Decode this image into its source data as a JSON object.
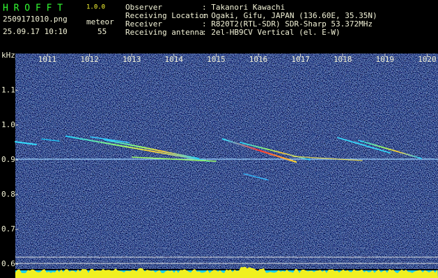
{
  "header": {
    "app": "H R O F F T",
    "version": "1.0.0",
    "file": "2509171010.png",
    "datetime": "25.09.17 10:10",
    "count_label": "meteor",
    "count": "55"
  },
  "info": {
    "rows": [
      {
        "label": "Observer",
        "value": ": Takanori Kawachi"
      },
      {
        "label": "Receiving Location",
        "value": ": Ogaki, Gifu, JAPAN (136.60E, 35.35N)"
      },
      {
        "label": "Receiver",
        "value": ": R820T2(RTL-SDR) SDR-Sharp 53.372MHz"
      },
      {
        "label": "Receiving antenna",
        "value": ": 2el-HB9CV Vertical (el. E-W)"
      }
    ]
  },
  "axes": {
    "y_unit": "kHz",
    "x_labels": [
      "1011",
      "1012",
      "1013",
      "1014",
      "1015",
      "1016",
      "1017",
      "1018",
      "1019",
      "1020"
    ],
    "y_labels": [
      "1.1",
      "1.0",
      "0.9",
      "0.8",
      "0.7",
      "0.6"
    ]
  }
}
